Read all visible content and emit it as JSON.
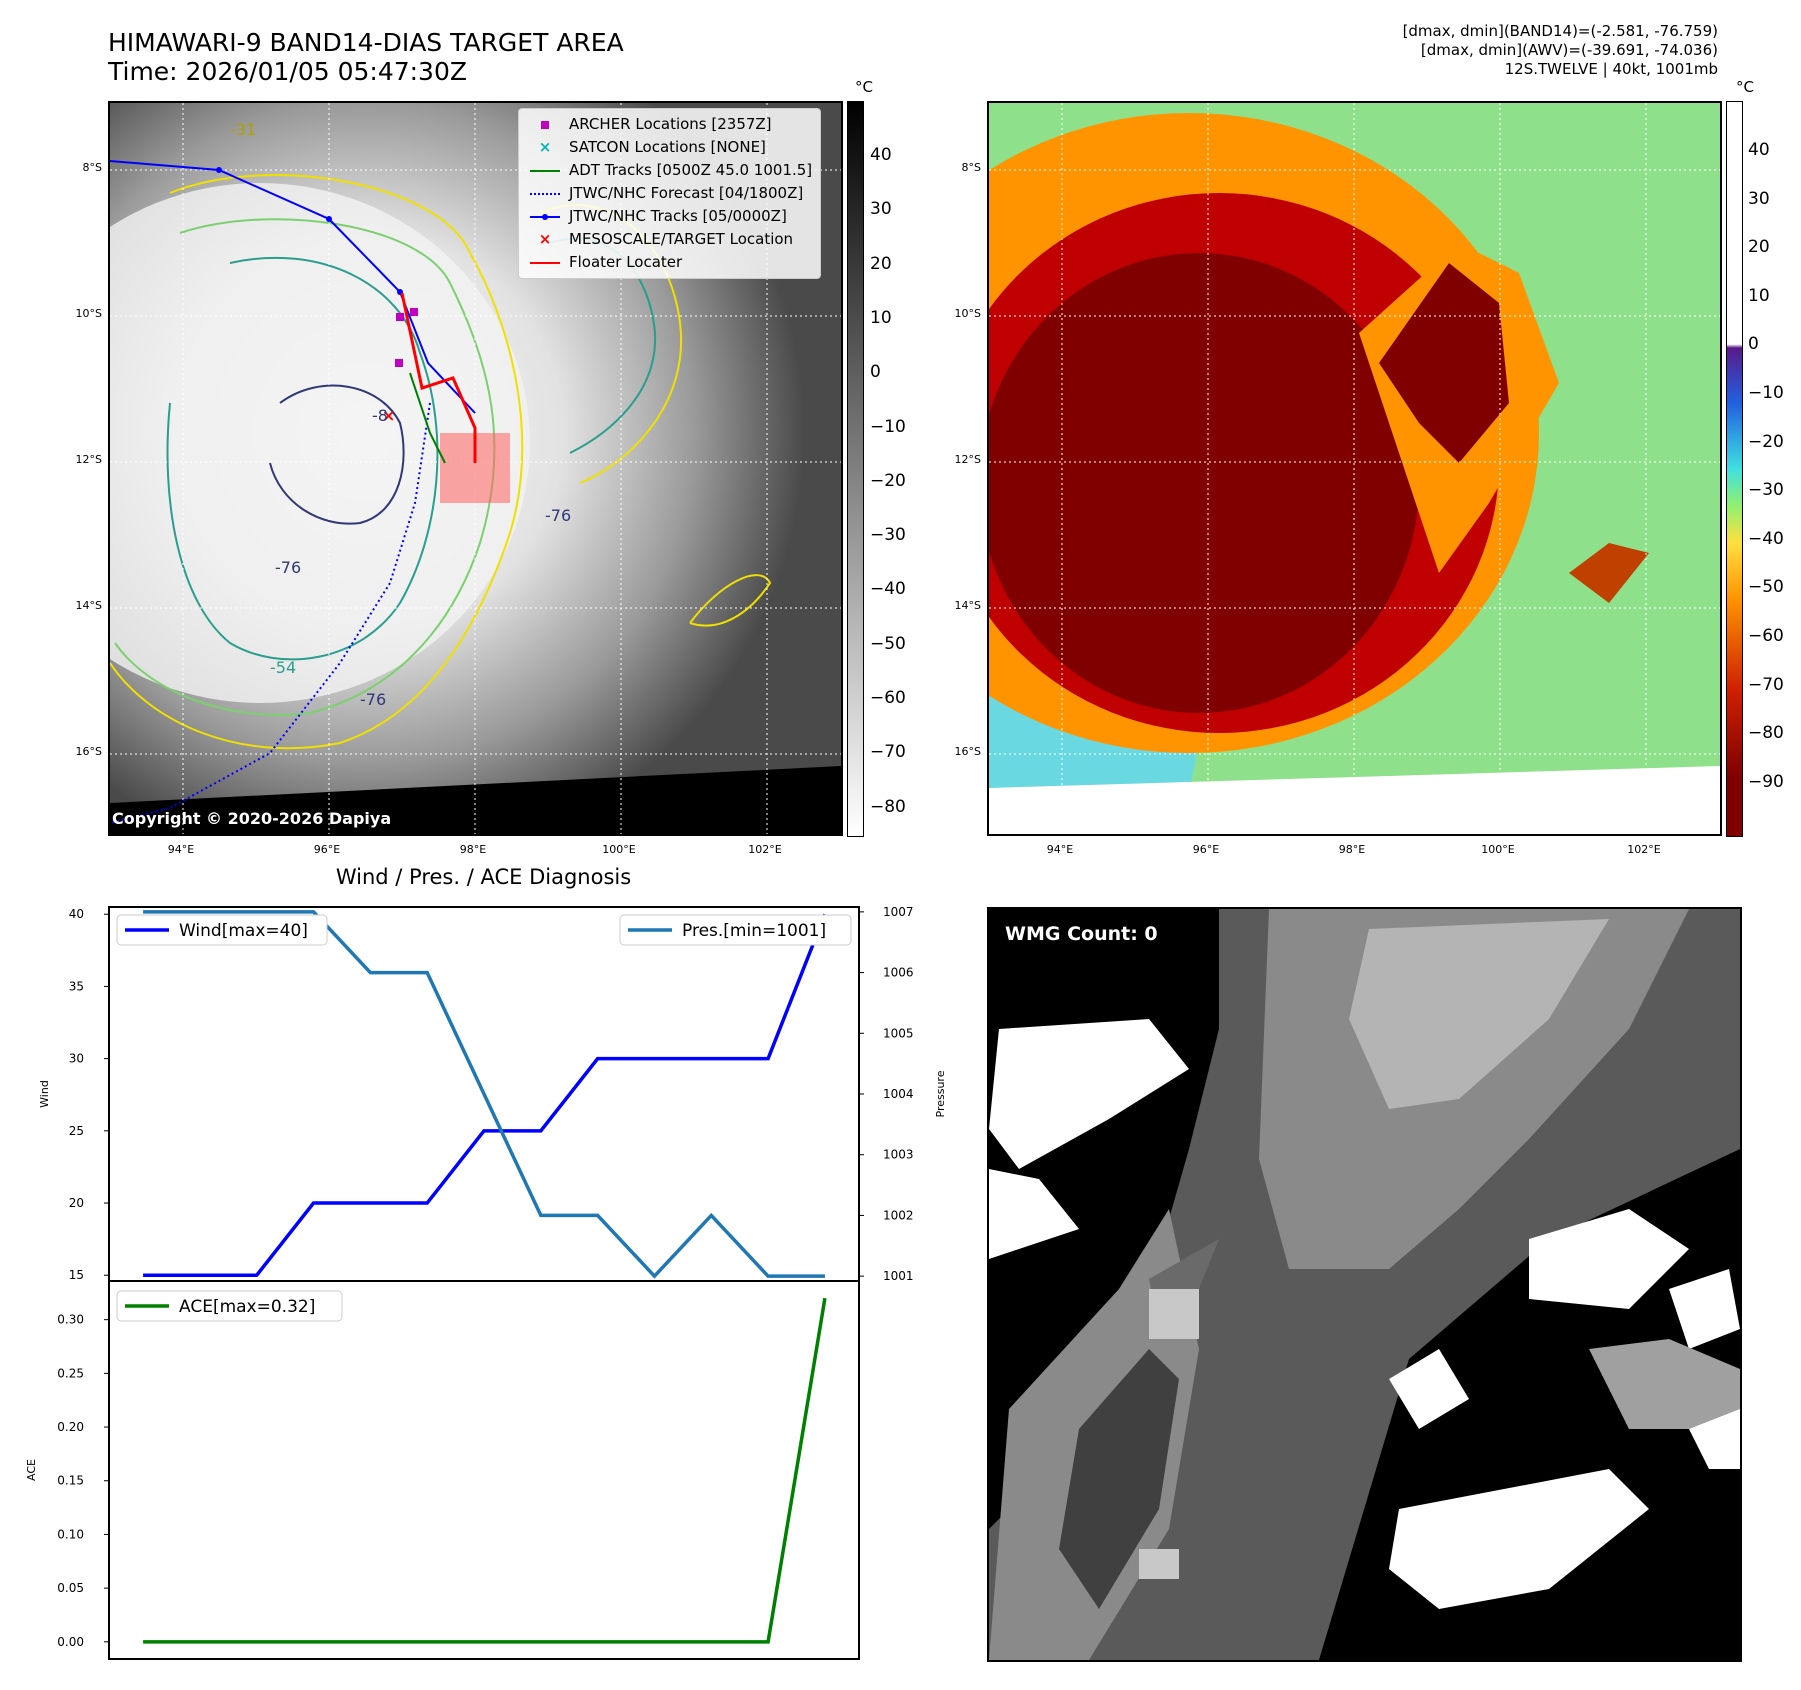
{
  "header": {
    "title_line1": "HIMAWARI-9 BAND14-DIAS TARGET AREA",
    "title_line2": "Time: 2026/01/05 05:47:30Z",
    "stats_line1": "[dmax, dmin](BAND14)=(-2.581, -76.759)",
    "stats_line2": "[dmax, dmin](AWV)=(-39.691, -74.036)",
    "stats_line3": "12S.TWELVE | 40kt, 1001mb"
  },
  "map": {
    "lat_ticks": [
      "8°S",
      "10°S",
      "12°S",
      "14°S",
      "16°S"
    ],
    "lon_ticks": [
      "94°E",
      "96°E",
      "98°E",
      "100°E",
      "102°E"
    ],
    "copyright": "Copyright © 2020-2026 Dapiya",
    "contour_labels": [
      "-31",
      "-8",
      "-76",
      "-76",
      "-54",
      "-76"
    ],
    "legend": [
      {
        "label": "ARCHER Locations [2357Z]",
        "color": "#c000c0",
        "icon": "square-marker"
      },
      {
        "label": "SATCON Locations [NONE]",
        "color": "#00b5b5",
        "icon": "x-marker"
      },
      {
        "label": "ADT Tracks [0500Z 45.0 1001.5]",
        "color": "#008000",
        "icon": "solid-line"
      },
      {
        "label": "JTWC/NHC Forecast [04/1800Z]",
        "color": "#0000ff",
        "icon": "dotted-line"
      },
      {
        "label": "JTWC/NHC Tracks [05/0000Z]",
        "color": "#0000ff",
        "icon": "line-with-dot"
      },
      {
        "label": "MESOSCALE/TARGET Location",
        "color": "#ff0000",
        "icon": "x-marker"
      },
      {
        "label": "Floater Locater",
        "color": "#ff0000",
        "icon": "solid-line"
      }
    ]
  },
  "colorbar_left": {
    "unit": "°C",
    "ticks": [
      "40",
      "30",
      "20",
      "10",
      "0",
      "−10",
      "−20",
      "−30",
      "−40",
      "−50",
      "−60",
      "−70",
      "−80"
    ]
  },
  "colorbar_right": {
    "unit": "°C",
    "ticks": [
      "40",
      "30",
      "20",
      "10",
      "0",
      "−10",
      "−20",
      "−30",
      "−40",
      "−50",
      "−60",
      "−70",
      "−80",
      "−90"
    ]
  },
  "wmg": {
    "label": "WMG Count: 0"
  },
  "chart_data": [
    {
      "type": "line",
      "title": "Wind / Pres. / ACE Diagnosis",
      "x": [
        0,
        1,
        2,
        3,
        4,
        5,
        6,
        7,
        8,
        9,
        10,
        11,
        12
      ],
      "series": [
        {
          "name": "Wind[max=40]",
          "axis": "left",
          "color": "#0000ff",
          "values": [
            15,
            15,
            15,
            20,
            20,
            20,
            25,
            25,
            30,
            30,
            30,
            30,
            40
          ]
        },
        {
          "name": "Pres.[min=1001]",
          "axis": "right",
          "color": "#1f77b4",
          "values": [
            1007,
            1007,
            1007,
            1007,
            1006,
            1006,
            1004,
            1002,
            1002,
            1001,
            1002,
            1001,
            1001
          ]
        }
      ],
      "ylabel": "Wind",
      "y2label": "Pressure",
      "ylim": [
        14.6,
        40.5
      ],
      "y2lim": [
        1000.92,
        1007.08
      ],
      "yticks": [
        40,
        35,
        30,
        25,
        20,
        15
      ],
      "y2ticks": [
        1007,
        1006,
        1005,
        1004,
        1003,
        1002,
        1001
      ]
    },
    {
      "type": "line",
      "x": [
        0,
        1,
        2,
        3,
        4,
        5,
        6,
        7,
        8,
        9,
        10,
        11,
        12
      ],
      "series": [
        {
          "name": "ACE[max=0.32]",
          "color": "#008000",
          "values": [
            0,
            0,
            0,
            0,
            0,
            0,
            0,
            0,
            0,
            0,
            0,
            0,
            0.32
          ]
        }
      ],
      "ylabel": "ACE",
      "ylim": [
        -0.016,
        0.336
      ],
      "yticks": [
        "0.30",
        "0.25",
        "0.20",
        "0.15",
        "0.10",
        "0.05",
        "0.00"
      ]
    }
  ]
}
